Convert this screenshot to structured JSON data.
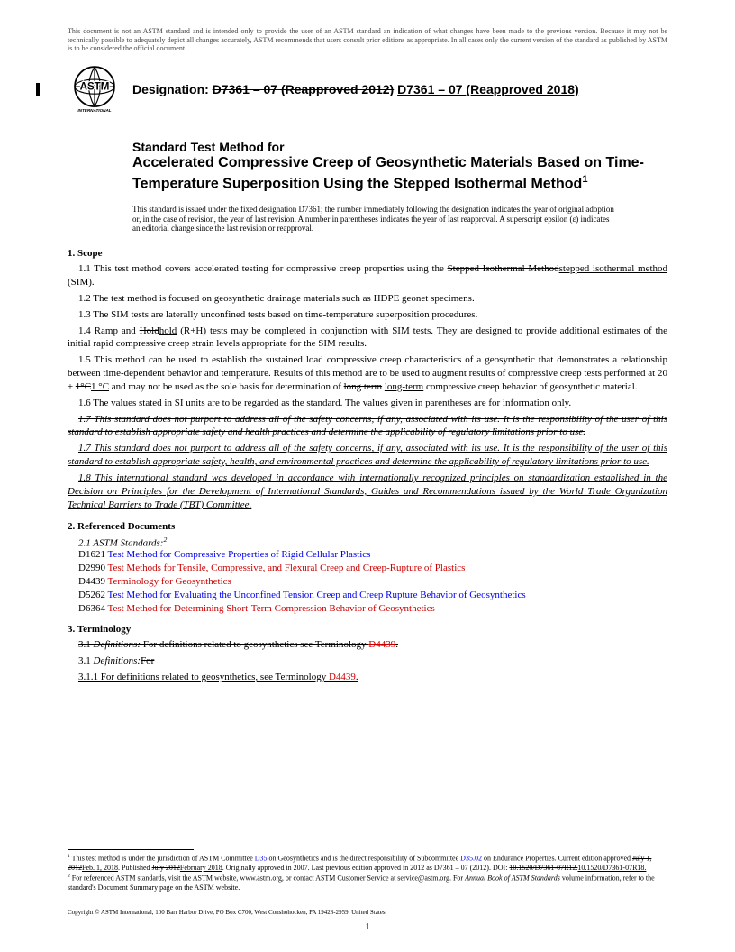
{
  "headerNotice": "This document is not an ASTM standard and is intended only to provide the user of an ASTM standard an indication of what changes have been made to the previous version. Because it may not be technically possible to adequately depict all changes accurately, ASTM recommends that users consult prior editions as appropriate. In all cases only the current version of the standard as published by ASTM is to be considered the official document.",
  "designation": {
    "label": "Designation:",
    "old": "D7361 – 07 (Reapproved 2012)",
    "new": "D7361 – 07 (Reapproved 2018)"
  },
  "logoTop": "ASTM",
  "logoBottom": "INTERNATIONAL",
  "title": {
    "prefix": "Standard Test Method for",
    "main": "Accelerated Compressive Creep of Geosynthetic Materials Based on Time-Temperature Superposition Using the Stepped Isothermal Method",
    "super": "1"
  },
  "issuance": "This standard is issued under the fixed designation D7361; the number immediately following the designation indicates the year of original adoption or, in the case of revision, the year of last revision. A number in parentheses indicates the year of last reapproval. A superscript epsilon (ε) indicates an editorial change since the last revision or reapproval.",
  "scope": {
    "head": "1.  Scope",
    "p11a": "1.1  This test method covers accelerated testing for compressive creep properties using the ",
    "p11old": "Stepped Isothermal Method",
    "p11new": "stepped isothermal method",
    "p11b": " (SIM).",
    "p12": "1.2  The test method is focused on geosynthetic drainage materials such as HDPE geonet specimens.",
    "p13": "1.3   The SIM tests are laterally unconfined tests based on time-temperature superposition procedures.",
    "p14a": "1.4  Ramp and ",
    "p14old": "Hold",
    "p14new": "hold",
    "p14b": " (R+H) tests may be completed in conjunction with SIM tests. They are designed to provide additional estimates of the initial rapid compressive creep strain levels appropriate for the SIM results.",
    "p15a": "1.5 This method can be used to establish the sustained load compressive creep characteristics of a geosynthetic that demonstrates a relationship between time-dependent behavior and temperature. Results of this method are to be used to augment results of compressive creep tests performed at 20 ± ",
    "p15old": "1°C",
    "p15new": "1 °C",
    "p15b": " and may not be used as the sole basis for determination of ",
    "p15oldterm": "long term",
    "p15newterm": "long-term",
    "p15c": " compressive creep behavior of geosynthetic material.",
    "p16": "1.6  The values stated in SI units are to be regarded as the standard. The values given in parentheses are for information only.",
    "p17old": "1.7 This standard does not purport to address all of the safety concerns, if any, associated with its use. It is the responsibility of the user of this standard to establish appropriate safety and health practices and determine the applicability of regulatory limitations prior to use.",
    "p17new": "1.7 This standard does not purport to address all of the safety concerns, if any, associated with its use. It is the responsibility of the user of this standard to establish appropriate safety, health, and environmental practices and determine the applicability of regulatory limitations prior to use.",
    "p18": "1.8 This international standard was developed in accordance with internationally recognized principles on standardization established in the Decision on Principles for the Development of International Standards, Guides and Recommendations issued by the World Trade Organization Technical Barriers to Trade (TBT) Committee."
  },
  "refs": {
    "head": "2.  Referenced Documents",
    "sub": "2.1  ASTM Standards:",
    "subSup": "2",
    "items": [
      {
        "id": "D1621",
        "title": "Test Method for Compressive Properties of Rigid Cellular Plastics",
        "red": false
      },
      {
        "id": "D2990",
        "title": "Test Methods for Tensile, Compressive, and Flexural Creep and Creep-Rupture of Plastics",
        "red": true
      },
      {
        "id": "D4439",
        "title": "Terminology for Geosynthetics",
        "red": true
      },
      {
        "id": "D5262",
        "title": "Test Method for Evaluating the Unconfined Tension Creep and Creep Rupture Behavior of Geosynthetics",
        "red": false
      },
      {
        "id": "D6364",
        "title": "Test Method for Determining Short-Term Compression Behavior of Geosynthetics",
        "red": true
      }
    ]
  },
  "terminology": {
    "head": "3.  Terminology",
    "p31olda": "3.1  ",
    "p31oldDef": "Definitions:",
    "p31oldb": " For definitions related to geosynthetics see Terminology ",
    "p31oldRef": "D4439",
    "p31oldc": ".",
    "p31newLabel": "3.1  ",
    "p31newDef": "Definitions:",
    "p31newFor": "For",
    "p311a": "3.1.1 For definitions related to geosynthetics, see Terminology ",
    "p311ref": "D4439",
    "p311b": "."
  },
  "footnotes": {
    "f1a": " This test method is under the jurisdiction of ASTM Committee ",
    "f1link1": "D35",
    "f1b": " on Geosynthetics and is the direct responsibility of Subcommittee ",
    "f1link2": "D35.02",
    "f1c": " on Endurance Properties. Current edition approved ",
    "f1old1": "July 1, 2012",
    "f1new1": "Feb. 1, 2018",
    "f1d": ". Published ",
    "f1old2": "July 2012",
    "f1new2": "February 2018",
    "f1e": ". Originally approved in 2007. Last previous edition approved in 2012 as D7361 – 07 (2012). DOI: ",
    "f1olddoi": "10.1520/D7361-07R12.",
    "f1newdoi": "10.1520/D7361-07R18.",
    "f2a": " For referenced ASTM standards, visit the ASTM website, www.astm.org, or contact ASTM Customer Service at service@astm.org. For ",
    "f2i": "Annual Book of ASTM Standards",
    "f2b": " volume information, refer to the standard's Document Summary page on the ASTM website."
  },
  "copyright": "Copyright © ASTM International, 100 Barr Harbor Drive, PO Box C700, West Conshohocken, PA 19428-2959. United States",
  "pageNum": "1"
}
